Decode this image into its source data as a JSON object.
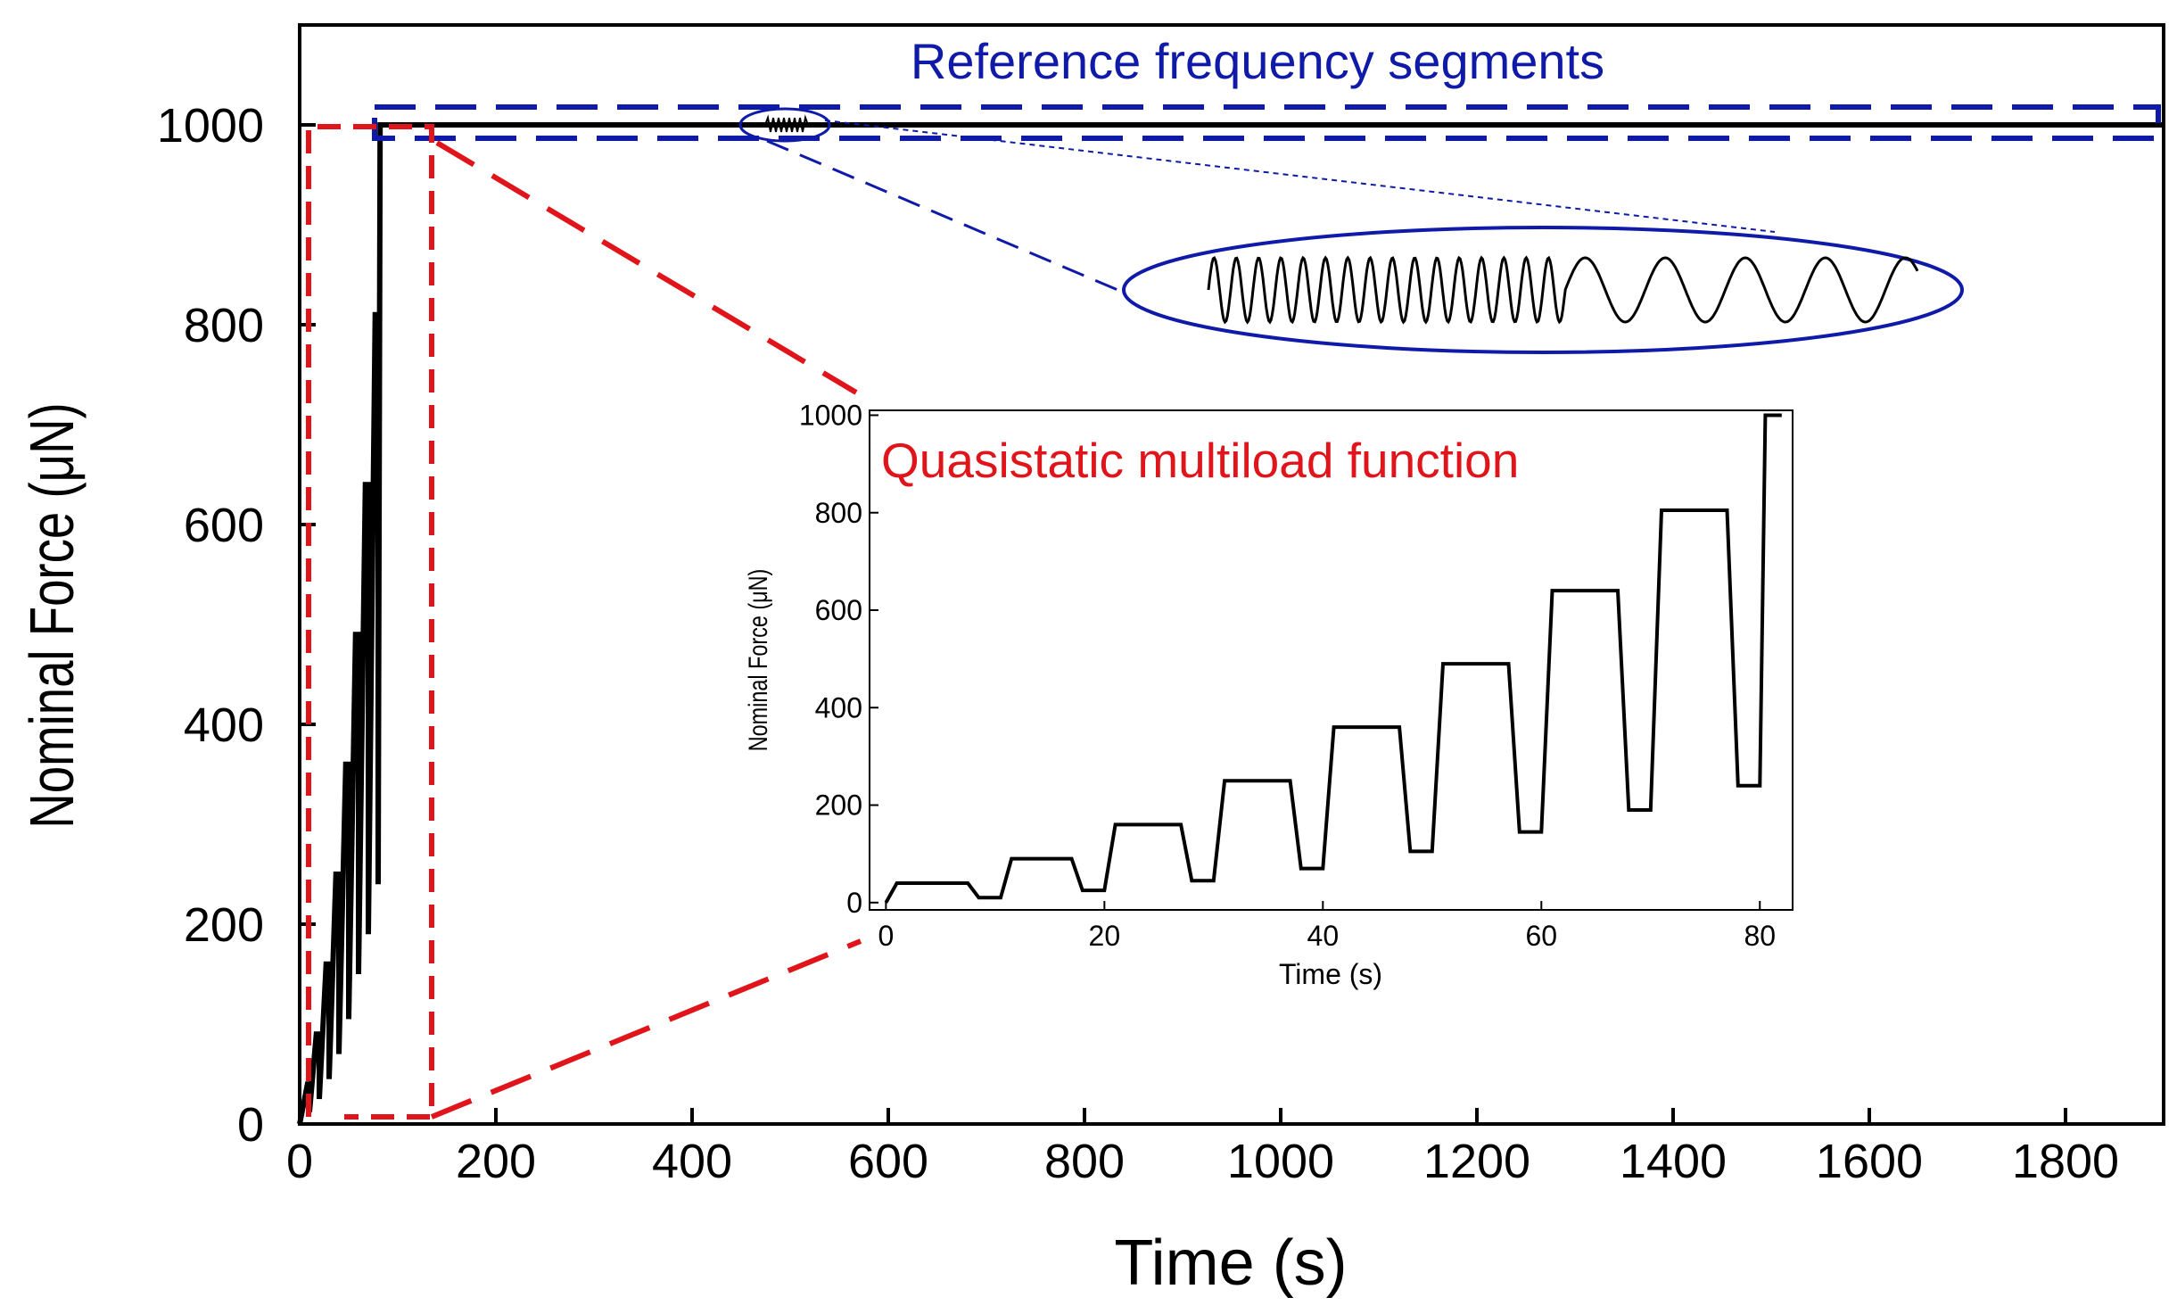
{
  "chart_data": [
    {
      "id": "main",
      "type": "line",
      "xlabel": "Time (s)",
      "ylabel": "Nominal Force (μN)",
      "xlim": [
        0,
        1900
      ],
      "ylim": [
        0,
        1100
      ],
      "xticks": [
        0,
        200,
        400,
        600,
        800,
        1000,
        1200,
        1400,
        1600,
        1800
      ],
      "yticks": [
        0,
        200,
        400,
        600,
        800,
        1000
      ],
      "series": [
        {
          "name": "Nominal force",
          "x": [
            0,
            8,
            10,
            10,
            17,
            20,
            20,
            27,
            30,
            30,
            37,
            40,
            40,
            47,
            50,
            50,
            57,
            60,
            60,
            67,
            70,
            70,
            77,
            80,
            80,
            82,
            1900
          ],
          "y": [
            0,
            40,
            40,
            12,
            90,
            90,
            25,
            160,
            160,
            45,
            250,
            250,
            70,
            360,
            360,
            105,
            490,
            490,
            150,
            640,
            640,
            190,
            810,
            810,
            240,
            1000,
            1000
          ]
        }
      ],
      "annotations": [
        {
          "text": "Reference frequency segments",
          "color": "#0f1aa8"
        }
      ]
    },
    {
      "id": "inset",
      "type": "line",
      "title": "Quasistatic multiload function",
      "xlabel": "Time (s)",
      "ylabel": "Nominal Force (μN)",
      "xlim": [
        -1.5,
        83
      ],
      "ylim": [
        -15,
        1010
      ],
      "xticks": [
        0,
        20,
        40,
        60,
        80
      ],
      "yticks": [
        0,
        200,
        400,
        600,
        800,
        1000
      ],
      "series": [
        {
          "name": "Multiload function",
          "x": [
            0,
            1,
            7.5,
            8.5,
            10.5,
            11.5,
            17,
            18,
            20,
            21,
            27,
            28,
            30,
            31,
            37,
            38,
            40,
            41,
            47,
            48,
            50,
            51,
            57,
            58,
            60,
            61,
            67,
            68,
            70,
            71,
            77,
            78,
            80,
            80.5,
            82
          ],
          "y": [
            0,
            40,
            40,
            10,
            10,
            90,
            90,
            25,
            25,
            160,
            160,
            45,
            45,
            250,
            250,
            70,
            70,
            360,
            360,
            105,
            105,
            490,
            490,
            145,
            145,
            640,
            640,
            190,
            190,
            805,
            805,
            240,
            240,
            1000,
            1000
          ]
        }
      ]
    }
  ],
  "colors": {
    "data_line": "#000000",
    "blue_annotation": "#0f1aa8",
    "red_annotation": "#e0151b",
    "axis": "#000000"
  }
}
